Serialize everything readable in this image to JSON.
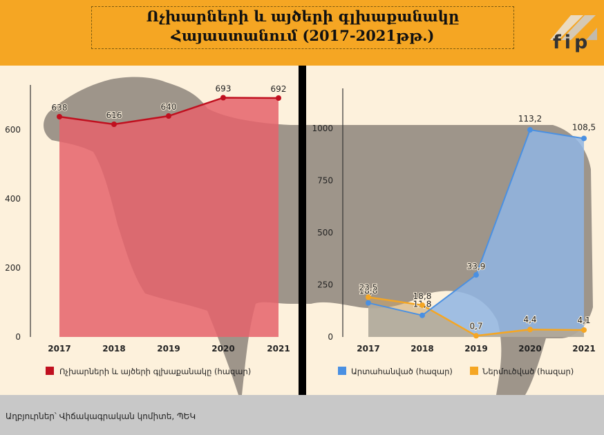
{
  "header": {
    "title_line1": "Ոչխարների և այծերի գլխաքանակը",
    "title_line2": "Հայաստանում (2017-2021թթ.)",
    "logo_text": "fip"
  },
  "colors": {
    "header_bg": "#f5a623",
    "red": "#c0101f",
    "red_fill": "#e5636b",
    "blue": "#4a90e2",
    "blue_fill": "#8fb5e3",
    "orange": "#f5a623",
    "silhouette": "#9e958a"
  },
  "footer": {
    "source": "Աղբյուրներ՝ Վիճակագրական կոմիտե, ՊԵԿ"
  },
  "chart_data": [
    {
      "type": "area",
      "x": [
        "2017",
        "2018",
        "2019",
        "2020",
        "2021"
      ],
      "series": [
        {
          "name": "Ոչխարների և այծերի գլխաքանակը (հազար)",
          "values": [
            638,
            616,
            640,
            693,
            692
          ],
          "color": "#c0101f"
        }
      ],
      "yticks": [
        "0",
        "200",
        "400",
        "600"
      ],
      "ylim": [
        0,
        700
      ],
      "legend": "bottom"
    },
    {
      "type": "area",
      "x": [
        "2017",
        "2018",
        "2019",
        "2020",
        "2021"
      ],
      "series": [
        {
          "name": "Արտահանված (հազար)",
          "values": [
            18.6,
            11.8,
            33.9,
            113.2,
            108.5
          ],
          "labels": [
            "18,6",
            "11,8",
            "33,9",
            "113,2",
            "108,5"
          ],
          "color": "#4a90e2"
        },
        {
          "name": "Ներմուծված (հազար)",
          "values": [
            23.5,
            18.8,
            0.7,
            4.4,
            4.1
          ],
          "labels": [
            "23,5",
            "18,8",
            "0,7",
            "4,4",
            "4,1"
          ],
          "color": "#f5a623"
        }
      ],
      "yticks": [
        "0",
        "250",
        "500",
        "750",
        "1000"
      ],
      "legend": "bottom"
    }
  ]
}
